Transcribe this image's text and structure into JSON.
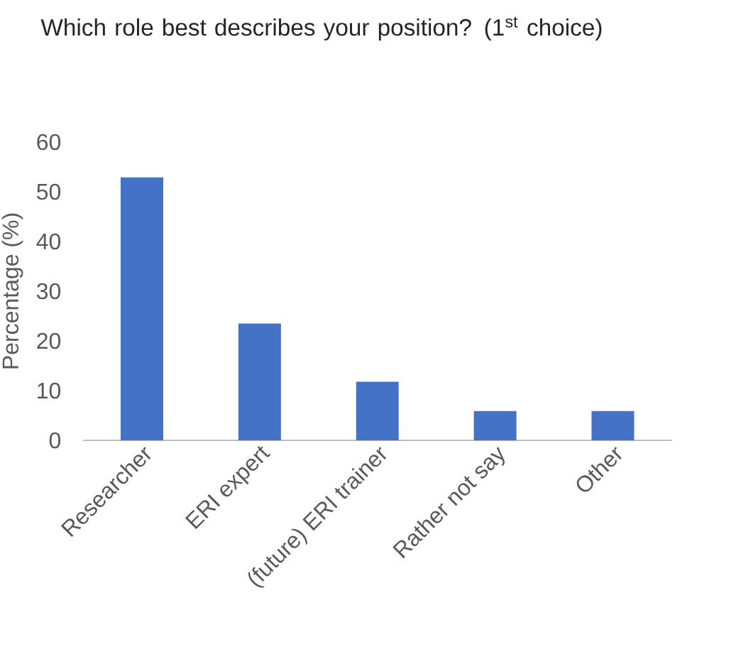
{
  "chart_data": {
    "type": "bar",
    "title": "Which role best describes your position? (1$^{st}$ choice)",
    "ylabel": "Percentage (%)",
    "categories": [
      "Researcher",
      "ERI expert",
      "(future) ERI trainer",
      "Rather not say",
      "Other"
    ],
    "values": [
      52.9,
      23.5,
      11.8,
      5.9,
      5.9
    ],
    "color": "#4472c4",
    "ylim": [
      0,
      60
    ],
    "yticks": [
      0,
      10,
      20,
      30,
      40,
      50,
      60
    ]
  }
}
